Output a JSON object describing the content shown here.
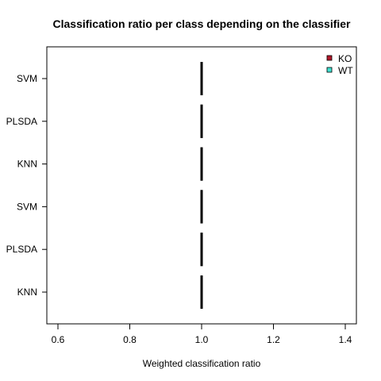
{
  "chart_data": {
    "type": "bar",
    "orientation": "horizontal",
    "title": "Classification ratio per class depending on the classifier",
    "xlabel": "Weighted classification ratio",
    "ylabel": "",
    "xlim": [
      0.6,
      1.4
    ],
    "xticks": [
      0.6,
      0.8,
      1.0,
      1.2,
      1.4
    ],
    "xtick_labels": [
      "0.6",
      "0.8",
      "1.0",
      "1.2",
      "1.4"
    ],
    "categories": [
      "SVM",
      "PLSDA",
      "KNN",
      "SVM",
      "PLSDA",
      "KNN"
    ],
    "series": [
      {
        "name": "KO",
        "color": "#B2182B",
        "values": [
          1.0,
          1.0,
          1.0,
          1.0,
          1.0,
          1.0
        ]
      },
      {
        "name": "WT",
        "color": "#40E0D0",
        "values": [
          1.0,
          1.0,
          1.0,
          1.0,
          1.0,
          1.0
        ]
      }
    ],
    "grid": false,
    "legend_position": "top-right"
  }
}
